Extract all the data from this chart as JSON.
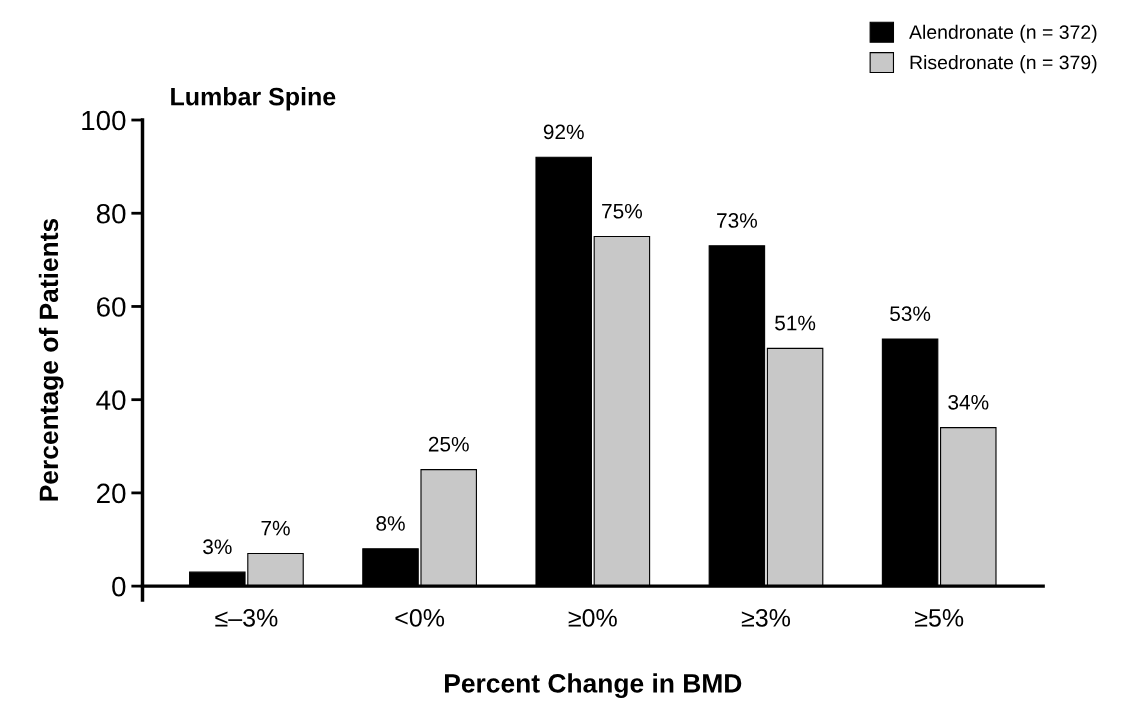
{
  "chart_data": {
    "type": "bar",
    "title": "Lumbar Spine",
    "xlabel": "Percent Change in BMD",
    "ylabel": "Percentage of Patients",
    "categories": [
      "≤–3%",
      "<0%",
      "≥0%",
      "≥3%",
      "≥5%"
    ],
    "series": [
      {
        "name": "Alendronate (n = 372)",
        "color": "#000000",
        "values": [
          3,
          8,
          92,
          73,
          53
        ],
        "value_labels": [
          "3%",
          "8%",
          "92%",
          "73%",
          "53%"
        ]
      },
      {
        "name": "Risedronate (n = 379)",
        "color": "#c8c8c8",
        "values": [
          7,
          25,
          75,
          51,
          34
        ],
        "value_labels": [
          "7%",
          "25%",
          "75%",
          "51%",
          "34%"
        ]
      }
    ],
    "ylim": [
      -3,
      100
    ],
    "yticks": [
      0,
      20,
      40,
      60,
      80,
      100
    ],
    "grid": false,
    "legend": "top right"
  }
}
